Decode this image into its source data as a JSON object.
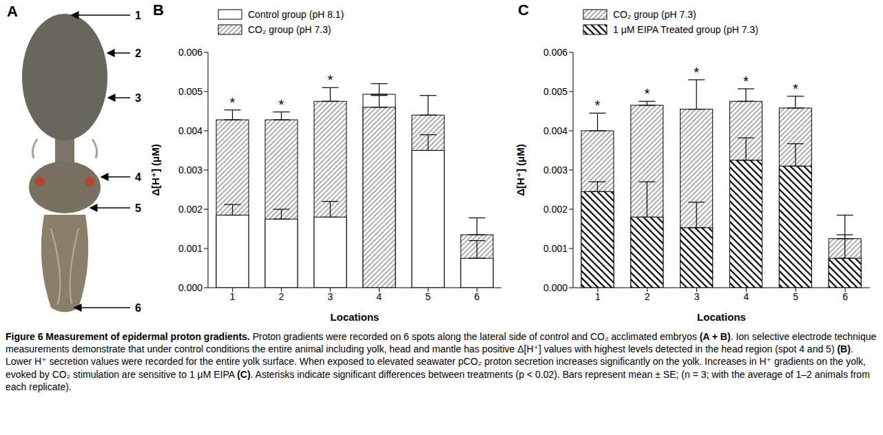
{
  "chart_data": [
    {
      "type": "bar",
      "panel": "B",
      "categories": [
        "1",
        "2",
        "3",
        "4",
        "5",
        "6"
      ],
      "x_label": "Locations",
      "y_label": "Δ[H⁺] (μM)",
      "ylim": [
        0,
        0.006
      ],
      "yticks": [
        {
          "value": 0,
          "label": "0.000"
        },
        {
          "value": 0.001,
          "label": "0.001"
        },
        {
          "value": 0.002,
          "label": "0.002"
        },
        {
          "value": 0.003,
          "label": "0.003"
        },
        {
          "value": 0.004,
          "label": "0.004"
        },
        {
          "value": 0.005,
          "label": "0.005"
        },
        {
          "value": 0.006,
          "label": "0.006"
        }
      ],
      "legend": "upper left",
      "series": [
        {
          "name": "Control group (pH 8.1)",
          "color": "#ffffff",
          "values": [
            0.00185,
            0.00175,
            0.0018,
            0.00493,
            0.0035,
            0.00075
          ],
          "errors": [
            0.00027,
            0.00025,
            0.0004,
            0.00027,
            0.0004,
            0.00045
          ]
        },
        {
          "name": "CO₂ group (pH 7.3)",
          "color": "#595959",
          "values": [
            0.00428,
            0.00428,
            0.00475,
            0.0046,
            0.0044,
            0.00135
          ],
          "errors": [
            0.00025,
            0.0002,
            0.00035,
            0.0003,
            0.0005,
            0.00043
          ]
        }
      ],
      "annotations": [
        "*",
        "*",
        "*",
        null,
        null,
        null
      ]
    },
    {
      "type": "bar",
      "panel": "C",
      "categories": [
        "1",
        "2",
        "3",
        "4",
        "5",
        "6"
      ],
      "x_label": "Locations",
      "y_label": "Δ[H⁺] (μM)",
      "ylim": [
        0,
        0.006
      ],
      "yticks": [
        {
          "value": 0,
          "label": "0.000"
        },
        {
          "value": 0.001,
          "label": "0.001"
        },
        {
          "value": 0.002,
          "label": "0.002"
        },
        {
          "value": 0.003,
          "label": "0.003"
        },
        {
          "value": 0.004,
          "label": "0.004"
        },
        {
          "value": 0.005,
          "label": "0.005"
        },
        {
          "value": 0.006,
          "label": "0.006"
        }
      ],
      "legend": "upper left",
      "series": [
        {
          "name": "CO₂ group (pH 7.3)",
          "color": "#595959",
          "values": [
            0.004,
            0.00465,
            0.00455,
            0.00475,
            0.00458,
            0.00125
          ],
          "errors": [
            0.00045,
            0.0001,
            0.00075,
            0.00032,
            0.0003,
            0.0006
          ]
        },
        {
          "name": "1 μM EIPA Treated group (pH 7.3)",
          "color": "#000000",
          "values": [
            0.00245,
            0.0018,
            0.00153,
            0.00325,
            0.0031,
            0.00075
          ],
          "errors": [
            0.00025,
            0.0009,
            0.00065,
            0.00057,
            0.00057,
            0.0006
          ]
        }
      ],
      "annotations": [
        "*",
        "*",
        "*",
        "*",
        "*",
        null
      ]
    }
  ],
  "panel_a": {
    "label": "A",
    "points": [
      "1",
      "2",
      "3",
      "4",
      "5",
      "6"
    ]
  },
  "caption": {
    "title": "Figure 6 Measurement of epidermal proton gradients.",
    "body": [
      "Proton gradients were recorded on 6 spots along the lateral side of control and CO₂ acclimated embryos ",
      "(A + B)",
      ". Ion selective electrode technique measurements demonstrate that under control conditions the entire animal including yolk, head and mantle has positive Δ[H⁺] values with highest levels detected in the head region (spot 4 and 5) ",
      "(B)",
      ". Lower H⁺ secretion values were recorded for the entire yolk surface. When exposed to elevated seawater pCO₂ proton secretion increases significantly on the yolk. Increases in H⁺ gradients on the yolk, evoked by CO₂ stimulation are sensitive to 1 μM EIPA ",
      "(C)",
      ". Asterisks indicate significant differences between treatments (p < 0.02). Bars represent mean ± SE; (n = 3; with the average of 1–2 animals from each replicate)."
    ]
  }
}
